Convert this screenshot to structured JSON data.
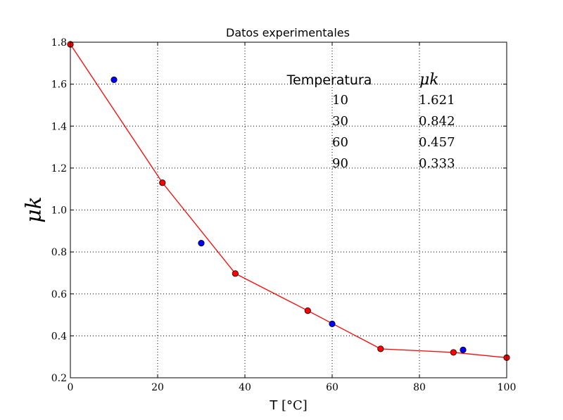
{
  "chart_data": {
    "type": "scatter",
    "title": "Datos experimentales",
    "xlabel_prefix": "T ",
    "xlabel_unit": "[°C]",
    "ylabel": "μk",
    "xlim": [
      0,
      100
    ],
    "ylim": [
      0.2,
      1.8
    ],
    "x_ticks": [
      0,
      20,
      40,
      60,
      80,
      100
    ],
    "y_ticks": [
      0.2,
      0.4,
      0.6,
      0.8,
      1.0,
      1.2,
      1.4,
      1.6,
      1.8
    ],
    "y_tick_labels": [
      "0.2",
      "0.4",
      "0.6",
      "0.8",
      "1.0",
      "1.2",
      "1.4",
      "1.6",
      "1.8"
    ],
    "grid": true,
    "colors": {
      "measured": "#0000ff",
      "fit": "#ff0000"
    },
    "series": [
      {
        "kind": "points",
        "x": [
          10,
          30,
          60,
          90
        ],
        "y": [
          1.621,
          0.842,
          0.457,
          0.333
        ]
      },
      {
        "kind": "line-with-markers",
        "x": [
          0,
          21.1,
          37.8,
          54.4,
          71.1,
          87.8,
          100
        ],
        "y": [
          1.79,
          1.13,
          0.697,
          0.52,
          0.338,
          0.321,
          0.296
        ]
      }
    ],
    "table": {
      "headers": [
        "Temperatura",
        "μk"
      ],
      "rows": [
        [
          "10",
          "1.621"
        ],
        [
          "30",
          "0.842"
        ],
        [
          "60",
          "0.457"
        ],
        [
          "90",
          "0.333"
        ]
      ]
    }
  }
}
